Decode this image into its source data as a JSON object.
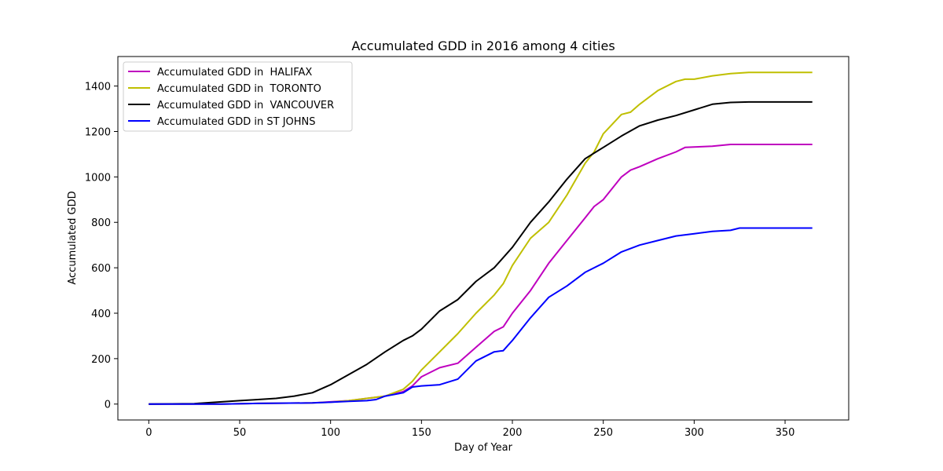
{
  "chart_data": {
    "type": "line",
    "title": "Accumulated GDD in 2016 among 4 cities",
    "xlabel": "Day of Year",
    "ylabel": "Accumulated GDD",
    "xlim": [
      -17,
      385
    ],
    "ylim": [
      -70,
      1530
    ],
    "xticks": [
      0,
      50,
      100,
      150,
      200,
      250,
      300,
      350
    ],
    "yticks": [
      0,
      200,
      400,
      600,
      800,
      1000,
      1200,
      1400
    ],
    "grid": false,
    "legend_position": "upper-left",
    "series": [
      {
        "name": "Accumulated GDD in  HALIFAX",
        "color": "#bf00bf",
        "x": [
          0,
          40,
          60,
          90,
          100,
          110,
          120,
          130,
          140,
          145,
          150,
          160,
          170,
          180,
          190,
          195,
          200,
          210,
          220,
          230,
          240,
          245,
          250,
          260,
          265,
          270,
          280,
          290,
          295,
          300,
          310,
          320,
          330,
          340,
          350,
          365
        ],
        "y": [
          0,
          0,
          3,
          5,
          10,
          15,
          25,
          35,
          55,
          80,
          120,
          160,
          180,
          250,
          320,
          340,
          400,
          500,
          620,
          720,
          820,
          870,
          900,
          1000,
          1030,
          1045,
          1080,
          1110,
          1130,
          1132,
          1135,
          1143,
          1143,
          1143,
          1143,
          1143
        ]
      },
      {
        "name": "Accumulated GDD in  TORONTO",
        "color": "#bfbf00",
        "x": [
          0,
          40,
          60,
          90,
          100,
          110,
          120,
          130,
          140,
          145,
          150,
          160,
          170,
          180,
          190,
          195,
          200,
          210,
          220,
          230,
          240,
          245,
          250,
          260,
          265,
          270,
          280,
          290,
          295,
          300,
          310,
          320,
          330,
          340,
          350,
          365
        ],
        "y": [
          0,
          0,
          3,
          5,
          8,
          15,
          25,
          35,
          65,
          100,
          150,
          230,
          310,
          400,
          480,
          530,
          610,
          730,
          800,
          920,
          1060,
          1110,
          1190,
          1275,
          1285,
          1320,
          1380,
          1420,
          1430,
          1430,
          1445,
          1455,
          1460,
          1460,
          1460,
          1460
        ]
      },
      {
        "name": "Accumulated GDD in  VANCOUVER",
        "color": "#000000",
        "x": [
          0,
          25,
          40,
          50,
          60,
          70,
          80,
          90,
          100,
          110,
          120,
          130,
          140,
          145,
          150,
          160,
          170,
          180,
          190,
          200,
          210,
          220,
          230,
          240,
          250,
          260,
          270,
          280,
          290,
          300,
          310,
          320,
          330,
          340,
          350,
          365
        ],
        "y": [
          0,
          2,
          10,
          15,
          20,
          25,
          35,
          50,
          85,
          130,
          175,
          230,
          280,
          300,
          330,
          410,
          460,
          540,
          600,
          690,
          800,
          890,
          990,
          1080,
          1130,
          1180,
          1225,
          1250,
          1270,
          1295,
          1320,
          1328,
          1330,
          1330,
          1330,
          1330
        ]
      },
      {
        "name": "Accumulated GDD in ST JOHNS",
        "color": "#0000ff",
        "x": [
          0,
          40,
          60,
          90,
          100,
          110,
          120,
          125,
          130,
          140,
          145,
          150,
          160,
          170,
          180,
          190,
          195,
          200,
          210,
          220,
          230,
          240,
          250,
          260,
          270,
          280,
          290,
          300,
          310,
          320,
          325,
          330,
          340,
          350,
          365
        ],
        "y": [
          0,
          0,
          3,
          5,
          8,
          12,
          15,
          20,
          35,
          50,
          75,
          80,
          85,
          110,
          190,
          230,
          235,
          280,
          380,
          470,
          520,
          580,
          620,
          670,
          700,
          720,
          740,
          750,
          760,
          765,
          775,
          775,
          775,
          775,
          775
        ]
      }
    ]
  }
}
